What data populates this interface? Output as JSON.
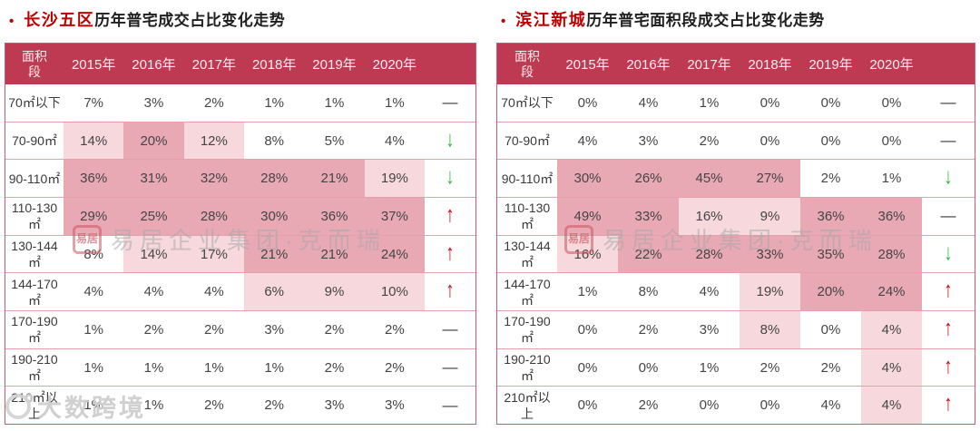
{
  "colors": {
    "header_bg": "#bd3a52",
    "cell_highlight_strong": "#e9a9b4",
    "cell_highlight_light": "#f6d8dd",
    "table_border": "#cd5a6e",
    "row_border": "#e89eab",
    "trend_up": "#c0141f",
    "trend_down": "#3bb54a",
    "title_accent": "#c00000"
  },
  "trend_symbols": {
    "dash": "—",
    "up": "↑",
    "down": "↓"
  },
  "panels": [
    {
      "bullet": "•",
      "title_highlight": "长沙五区",
      "title_rest": "历年普宅成交占比变化走势",
      "header": {
        "area_label": "面积段",
        "years": [
          "2015年",
          "2016年",
          "2017年",
          "2018年",
          "2019年",
          "2020年"
        ],
        "trend_label": ""
      },
      "rows": [
        {
          "label": "70㎡以下",
          "values": [
            "7%",
            "3%",
            "2%",
            "1%",
            "1%",
            "1%"
          ],
          "levels": [
            0,
            0,
            0,
            0,
            0,
            0
          ],
          "trend": "dash"
        },
        {
          "label": "70-90㎡",
          "values": [
            "14%",
            "20%",
            "12%",
            "8%",
            "5%",
            "4%"
          ],
          "levels": [
            1,
            2,
            1,
            0,
            0,
            0
          ],
          "trend": "down"
        },
        {
          "label": "90-110㎡",
          "values": [
            "36%",
            "31%",
            "32%",
            "28%",
            "21%",
            "19%"
          ],
          "levels": [
            2,
            2,
            2,
            2,
            2,
            1
          ],
          "trend": "down"
        },
        {
          "label": "110-130㎡",
          "values": [
            "29%",
            "25%",
            "28%",
            "30%",
            "36%",
            "37%"
          ],
          "levels": [
            2,
            2,
            2,
            2,
            2,
            2
          ],
          "trend": "up"
        },
        {
          "label": "130-144㎡",
          "values": [
            "8%",
            "14%",
            "17%",
            "21%",
            "21%",
            "24%"
          ],
          "levels": [
            0,
            1,
            1,
            2,
            2,
            2
          ],
          "trend": "up"
        },
        {
          "label": "144-170㎡",
          "values": [
            "4%",
            "4%",
            "4%",
            "6%",
            "9%",
            "10%"
          ],
          "levels": [
            0,
            0,
            0,
            1,
            1,
            1
          ],
          "trend": "up"
        },
        {
          "label": "170-190㎡",
          "values": [
            "1%",
            "2%",
            "2%",
            "3%",
            "2%",
            "2%"
          ],
          "levels": [
            0,
            0,
            0,
            0,
            0,
            0
          ],
          "trend": "dash"
        },
        {
          "label": "190-210㎡",
          "values": [
            "1%",
            "1%",
            "1%",
            "1%",
            "2%",
            "2%"
          ],
          "levels": [
            0,
            0,
            0,
            0,
            0,
            0
          ],
          "trend": "dash"
        },
        {
          "label": "210㎡以上",
          "values": [
            "1%",
            "1%",
            "2%",
            "2%",
            "3%",
            "3%"
          ],
          "levels": [
            0,
            0,
            0,
            0,
            0,
            0
          ],
          "trend": "dash"
        }
      ]
    },
    {
      "bullet": "•",
      "title_highlight": "滨江新城",
      "title_rest": "历年普宅面积段成交占比变化走势",
      "header": {
        "area_label": "面积段",
        "years": [
          "2015年",
          "2016年",
          "2017年",
          "2018年",
          "2019年",
          "2020年"
        ],
        "trend_label": ""
      },
      "rows": [
        {
          "label": "70㎡以下",
          "values": [
            "0%",
            "4%",
            "1%",
            "0%",
            "0%",
            "0%"
          ],
          "levels": [
            0,
            0,
            0,
            0,
            0,
            0
          ],
          "trend": "dash"
        },
        {
          "label": "70-90㎡",
          "values": [
            "4%",
            "3%",
            "2%",
            "0%",
            "0%",
            "0%"
          ],
          "levels": [
            0,
            0,
            0,
            0,
            0,
            0
          ],
          "trend": "dash"
        },
        {
          "label": "90-110㎡",
          "values": [
            "30%",
            "26%",
            "45%",
            "27%",
            "2%",
            "1%"
          ],
          "levels": [
            2,
            2,
            2,
            2,
            0,
            0
          ],
          "trend": "down"
        },
        {
          "label": "110-130㎡",
          "values": [
            "49%",
            "33%",
            "16%",
            "9%",
            "36%",
            "36%"
          ],
          "levels": [
            2,
            2,
            1,
            1,
            2,
            2
          ],
          "trend": "dash"
        },
        {
          "label": "130-144㎡",
          "values": [
            "16%",
            "22%",
            "28%",
            "33%",
            "35%",
            "28%"
          ],
          "levels": [
            1,
            2,
            2,
            2,
            2,
            2
          ],
          "trend": "down"
        },
        {
          "label": "144-170㎡",
          "values": [
            "1%",
            "8%",
            "4%",
            "19%",
            "20%",
            "24%"
          ],
          "levels": [
            0,
            0,
            0,
            1,
            2,
            2
          ],
          "trend": "up"
        },
        {
          "label": "170-190㎡",
          "values": [
            "0%",
            "2%",
            "3%",
            "8%",
            "0%",
            "4%"
          ],
          "levels": [
            0,
            0,
            0,
            1,
            0,
            1
          ],
          "trend": "up"
        },
        {
          "label": "190-210㎡",
          "values": [
            "0%",
            "0%",
            "1%",
            "2%",
            "2%",
            "4%"
          ],
          "levels": [
            0,
            0,
            0,
            0,
            0,
            1
          ],
          "trend": "up"
        },
        {
          "label": "210㎡以上",
          "values": [
            "0%",
            "2%",
            "0%",
            "0%",
            "4%",
            "4%"
          ],
          "levels": [
            0,
            0,
            0,
            0,
            0,
            1
          ],
          "trend": "up"
        }
      ]
    }
  ],
  "watermarks": {
    "center_seal": "易居",
    "center_text": "易居企业集团·克而瑞",
    "corner_text": "大数跨境"
  },
  "chart_data": [
    {
      "type": "heatmap",
      "title": "长沙五区历年普宅成交占比变化走势",
      "categories": [
        "2015年",
        "2016年",
        "2017年",
        "2018年",
        "2019年",
        "2020年"
      ],
      "row_labels": [
        "70㎡以下",
        "70-90㎡",
        "90-110㎡",
        "110-130㎡",
        "130-144㎡",
        "144-170㎡",
        "170-190㎡",
        "190-210㎡",
        "210㎡以上"
      ],
      "values_percent": [
        [
          7,
          3,
          2,
          1,
          1,
          1
        ],
        [
          14,
          20,
          12,
          8,
          5,
          4
        ],
        [
          36,
          31,
          32,
          28,
          21,
          19
        ],
        [
          29,
          25,
          28,
          30,
          36,
          37
        ],
        [
          8,
          14,
          17,
          21,
          21,
          24
        ],
        [
          4,
          4,
          4,
          6,
          9,
          10
        ],
        [
          1,
          2,
          2,
          3,
          2,
          2
        ],
        [
          1,
          1,
          1,
          1,
          2,
          2
        ],
        [
          1,
          1,
          2,
          2,
          3,
          3
        ]
      ],
      "trend": [
        "flat",
        "down",
        "down",
        "up",
        "up",
        "up",
        "flat",
        "flat",
        "flat"
      ],
      "legend_position": "none",
      "grid": "rows-only"
    },
    {
      "type": "heatmap",
      "title": "滨江新城历年普宅面积段成交占比变化走势",
      "categories": [
        "2015年",
        "2016年",
        "2017年",
        "2018年",
        "2019年",
        "2020年"
      ],
      "row_labels": [
        "70㎡以下",
        "70-90㎡",
        "90-110㎡",
        "110-130㎡",
        "130-144㎡",
        "144-170㎡",
        "170-190㎡",
        "190-210㎡",
        "210㎡以上"
      ],
      "values_percent": [
        [
          0,
          4,
          1,
          0,
          0,
          0
        ],
        [
          4,
          3,
          2,
          0,
          0,
          0
        ],
        [
          30,
          26,
          45,
          27,
          2,
          1
        ],
        [
          49,
          33,
          16,
          9,
          36,
          36
        ],
        [
          16,
          22,
          28,
          33,
          35,
          28
        ],
        [
          1,
          8,
          4,
          19,
          20,
          24
        ],
        [
          0,
          2,
          3,
          8,
          0,
          4
        ],
        [
          0,
          0,
          1,
          2,
          2,
          4
        ],
        [
          0,
          2,
          0,
          0,
          4,
          4
        ]
      ],
      "trend": [
        "flat",
        "flat",
        "down",
        "flat",
        "down",
        "up",
        "up",
        "up",
        "up"
      ],
      "legend_position": "none",
      "grid": "rows-only"
    }
  ]
}
